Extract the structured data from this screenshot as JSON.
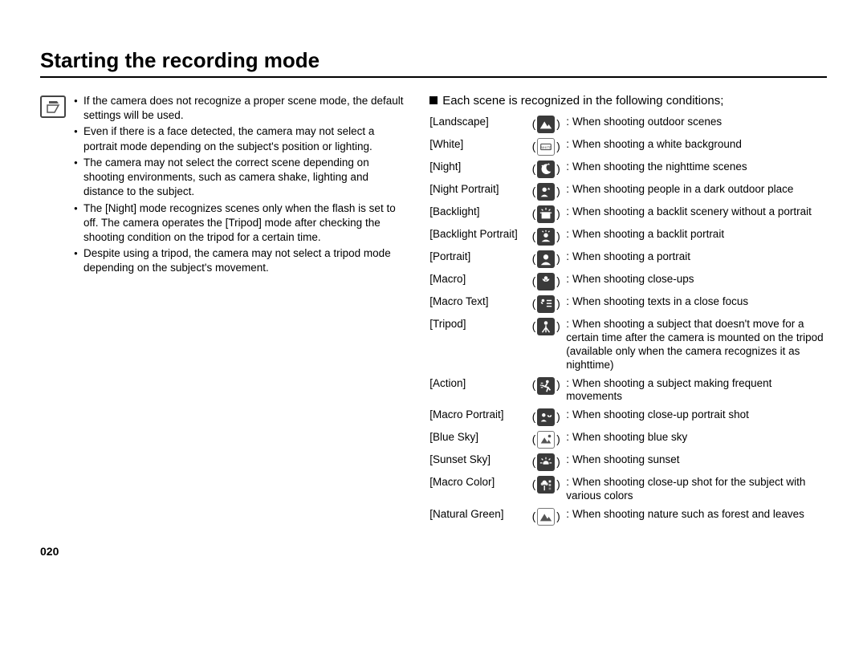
{
  "page": {
    "title": "Starting the recording mode",
    "page_number": "020"
  },
  "notes": {
    "bullets": [
      "If the camera does not recognize a proper scene mode, the default settings will be used.",
      "Even if there is a face detected, the camera may not select a portrait mode depending on the subject's position or lighting.",
      "The camera may not select the correct scene depending on shooting environments, such as camera shake, lighting and distance to the subject.",
      "The [Night] mode recognizes scenes only when the flash is set to off. The camera operates the [Tripod] mode after checking the shooting condition on the tripod for a certain time.",
      "Despite using a tripod, the camera may not select a tripod mode depending on the subject's movement."
    ]
  },
  "scenes": {
    "heading": "Each scene is recognized in the following conditions;",
    "items": [
      {
        "label": "[Landscape]",
        "icon": "landscape",
        "icon_style": "dark",
        "desc": "When shooting outdoor scenes"
      },
      {
        "label": "[White]",
        "icon": "white",
        "icon_style": "light",
        "desc": "When shooting a white background"
      },
      {
        "label": "[Night]",
        "icon": "night",
        "icon_style": "dark",
        "desc": "When shooting the nighttime scenes"
      },
      {
        "label": "[Night Portrait]",
        "icon": "night-portrait",
        "icon_style": "dark",
        "desc": "When shooting people in a dark outdoor place"
      },
      {
        "label": "[Backlight]",
        "icon": "backlight",
        "icon_style": "dark",
        "desc": "When shooting a backlit scenery without a portrait"
      },
      {
        "label": "[Backlight Portrait]",
        "icon": "backlight-portrait",
        "icon_style": "dark",
        "desc": "When shooting a backlit portrait"
      },
      {
        "label": "[Portrait]",
        "icon": "portrait",
        "icon_style": "dark",
        "desc": "When shooting a portrait"
      },
      {
        "label": "[Macro]",
        "icon": "macro",
        "icon_style": "dark",
        "desc": "When shooting close-ups"
      },
      {
        "label": "[Macro Text]",
        "icon": "macro-text",
        "icon_style": "dark",
        "desc": "When shooting texts in a close focus"
      },
      {
        "label": "[Tripod]",
        "icon": "tripod",
        "icon_style": "dark",
        "desc": "When shooting a subject that doesn't move for a certain time after the camera is mounted on the tripod (available only when the camera recognizes it as nighttime)"
      },
      {
        "label": "[Action]",
        "icon": "action",
        "icon_style": "dark",
        "desc": "When shooting a subject making frequent movements"
      },
      {
        "label": "[Macro Portrait]",
        "icon": "macro-portrait",
        "icon_style": "dark",
        "desc": "When shooting close-up portrait shot"
      },
      {
        "label": "[Blue Sky]",
        "icon": "blue-sky",
        "icon_style": "light",
        "desc": "When shooting blue sky"
      },
      {
        "label": "[Sunset Sky]",
        "icon": "sunset",
        "icon_style": "dark",
        "desc": "When shooting sunset"
      },
      {
        "label": "[Macro Color]",
        "icon": "macro-color",
        "icon_style": "dark",
        "desc": "When shooting close-up shot for the subject with various colors"
      },
      {
        "label": "[Natural Green]",
        "icon": "natural-green",
        "icon_style": "light",
        "desc": "When shooting nature such as forest and leaves"
      }
    ]
  },
  "style": {
    "title_fontsize": 26,
    "body_fontsize": 13.5,
    "icon_bg": "#3a3a3a",
    "icon_light_border": "#777777",
    "text_color": "#000000",
    "background_color": "#ffffff"
  }
}
